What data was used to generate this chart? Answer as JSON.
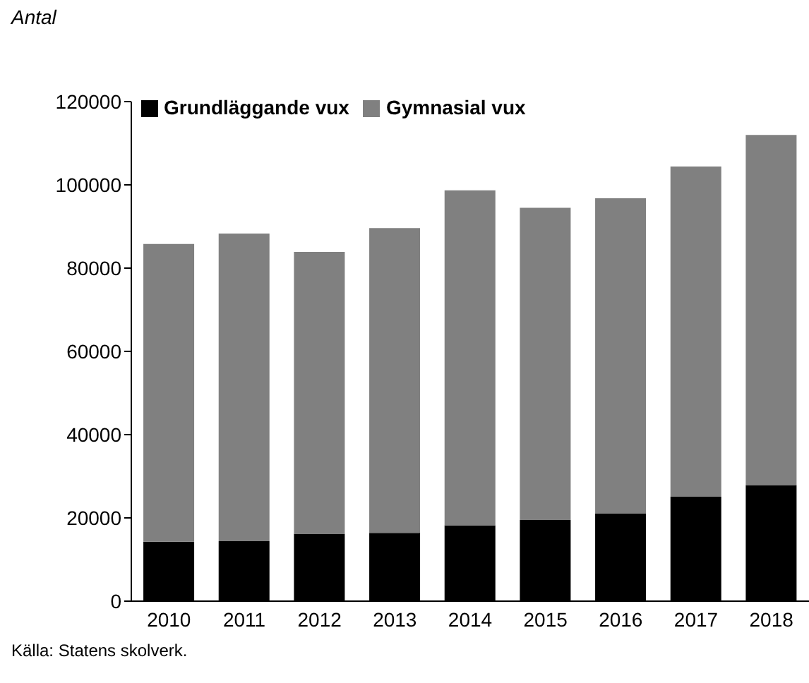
{
  "chart_data": {
    "type": "bar",
    "stacked": true,
    "ylabel": "Antal",
    "categories": [
      "2010",
      "2011",
      "2012",
      "2013",
      "2014",
      "2015",
      "2016",
      "2017",
      "2018"
    ],
    "series": [
      {
        "name": "Grundläggande vux",
        "color": "#000000",
        "values": [
          14300,
          14400,
          16200,
          16400,
          18200,
          19500,
          21100,
          25100,
          27900
        ]
      },
      {
        "name": "Gymnasial vux",
        "color": "#808080",
        "values": [
          71500,
          73900,
          67700,
          73200,
          80500,
          75000,
          75700,
          79300,
          84100
        ]
      }
    ],
    "ylim": [
      0,
      120000
    ],
    "yticks": [
      0,
      20000,
      40000,
      60000,
      80000,
      100000,
      120000
    ],
    "grid": false,
    "legend": "top left",
    "annotations": [
      "Källa: Statens skolverk."
    ]
  }
}
